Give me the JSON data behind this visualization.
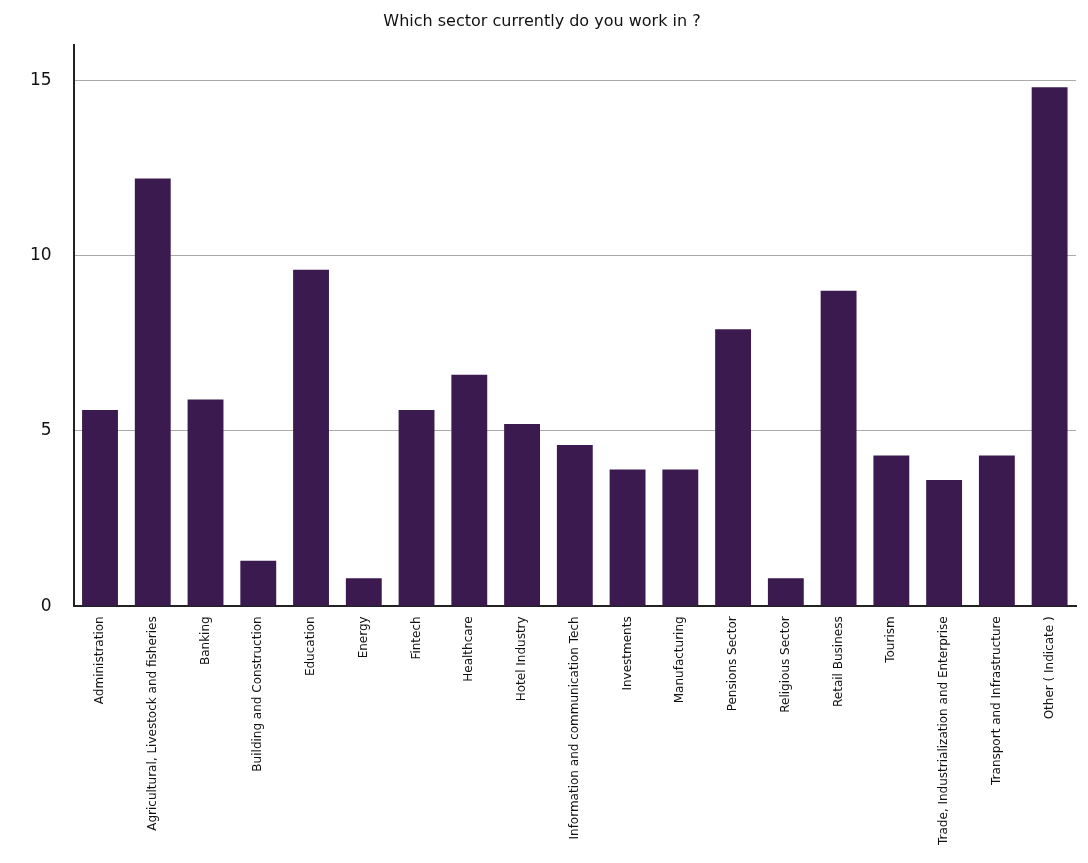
{
  "chart_data": {
    "type": "bar",
    "title": "Which sector currently do you work in ?",
    "categories": [
      "Administration",
      "Agricultural, Livestock and fisheries",
      "Banking",
      "Building and Construction",
      "Education",
      "Energy",
      "Fintech",
      "Healthcare",
      "Hotel Industry",
      "Information and communication Tech",
      "Investments",
      "Manufacturing",
      "Pensions Sector",
      "Religious Sector",
      "Retail Business",
      "Tourism",
      "Trade, Industrialization and Enterprise",
      "Transport and Infrastructure",
      "Other ( Indicate )"
    ],
    "values": [
      5.6,
      12.2,
      5.9,
      1.3,
      9.6,
      0.8,
      5.6,
      6.6,
      5.2,
      4.6,
      3.9,
      3.9,
      7.9,
      0.8,
      9.0,
      4.3,
      3.6,
      4.3,
      14.8
    ],
    "color": "#3a1a4f",
    "ylim": [
      0,
      16
    ],
    "yticks": [
      0,
      5,
      10,
      15
    ],
    "grid": "y",
    "legend": false
  }
}
